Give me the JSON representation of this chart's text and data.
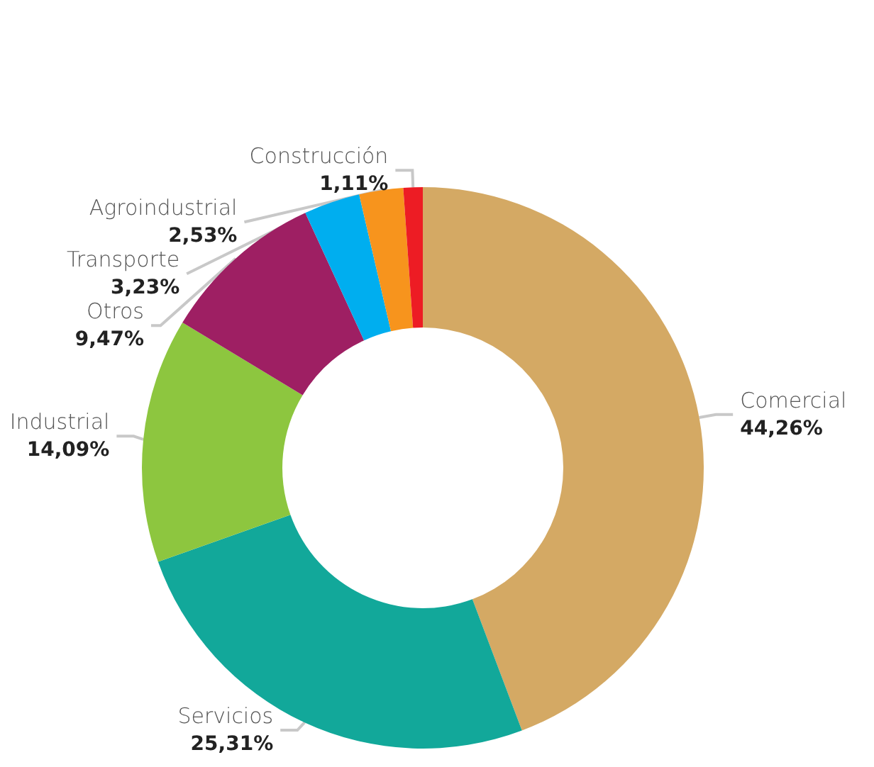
{
  "chart_data": {
    "type": "donut",
    "categories": [
      "Comercial",
      "Servicios",
      "Industrial",
      "Otros",
      "Transporte",
      "Agroindustrial",
      "Construcción"
    ],
    "values": [
      44.26,
      25.31,
      14.09,
      9.47,
      3.23,
      2.53,
      1.11
    ],
    "colors": [
      "#d4a964",
      "#12a89a",
      "#8dc63f",
      "#9e1f63",
      "#00aeef",
      "#f7941d",
      "#ed1c24"
    ],
    "value_labels": [
      "44,26%",
      "25,31%",
      "14,09%",
      "9,47%",
      "3,23%",
      "2,53%",
      "1,11%"
    ],
    "legend": false
  }
}
